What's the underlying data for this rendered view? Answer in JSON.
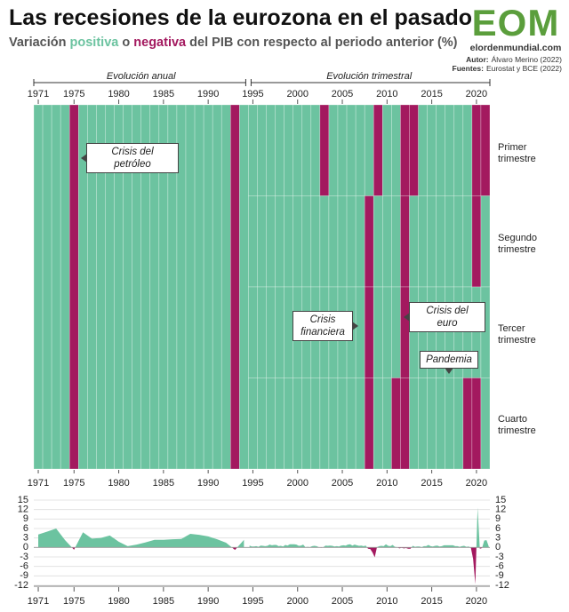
{
  "chart_data": {
    "type": "heatmap",
    "title": "Las recesiones de la eurozona en el pasado",
    "subtitle": {
      "before": "Variación",
      "positive": "positiva",
      "middle": "o",
      "negative": "negativa",
      "after": "del PIB con respecto al periodo anterior (%)"
    },
    "logo": "EOM",
    "site": "elordenmundial.com",
    "author": {
      "label": "Autor:",
      "value": "Álvaro Merino (2022)"
    },
    "sources": {
      "label": "Fuentes:",
      "value": "Eurostat y BCE (2022)"
    },
    "colors": {
      "positive": "#6cc3a0",
      "negative": "#a3195f"
    },
    "section_labels": {
      "annual": "Evolución anual",
      "quarterly": "Evolución trimestral"
    },
    "xticks": [
      1971,
      1975,
      1980,
      1985,
      1990,
      1995,
      2000,
      2005,
      2010,
      2015,
      2020
    ],
    "annual": {
      "years": [
        1971,
        1972,
        1973,
        1974,
        1975,
        1976,
        1977,
        1978,
        1979,
        1980,
        1981,
        1982,
        1983,
        1984,
        1985,
        1986,
        1987,
        1988,
        1989,
        1990,
        1991,
        1992,
        1993,
        1994
      ],
      "values": [
        4.1,
        5.0,
        6.0,
        2.3,
        -0.7,
        4.8,
        2.8,
        3.0,
        3.8,
        1.8,
        0.4,
        0.9,
        1.6,
        2.4,
        2.4,
        2.6,
        2.7,
        4.3,
        4.0,
        3.5,
        2.6,
        1.5,
        -0.8,
        2.4
      ]
    },
    "quarterly": {
      "quarters": [
        "Primer trimestre",
        "Segundo trimestre",
        "Tercer trimestre",
        "Cuarto trimestre"
      ],
      "years": [
        1995,
        1996,
        1997,
        1998,
        1999,
        2000,
        2001,
        2002,
        2003,
        2004,
        2005,
        2006,
        2007,
        2008,
        2009,
        2010,
        2011,
        2012,
        2013,
        2014,
        2015,
        2016,
        2017,
        2018,
        2019,
        2020,
        2021
      ],
      "values": [
        [
          0.6,
          0.3,
          0.3,
          0.4
        ],
        [
          0.2,
          0.6,
          0.5,
          0.4
        ],
        [
          0.5,
          0.9,
          0.7,
          0.8
        ],
        [
          0.8,
          0.4,
          0.5,
          0.3
        ],
        [
          0.8,
          0.6,
          1.0,
          1.0
        ],
        [
          1.0,
          0.9,
          0.5,
          0.6
        ],
        [
          0.9,
          0.1,
          0.2,
          0.1
        ],
        [
          0.4,
          0.5,
          0.4,
          0.1
        ],
        [
          -0.1,
          0.1,
          0.6,
          0.5
        ],
        [
          0.6,
          0.5,
          0.3,
          0.4
        ],
        [
          0.3,
          0.6,
          0.7,
          0.6
        ],
        [
          0.9,
          1.0,
          0.6,
          0.9
        ],
        [
          0.7,
          0.5,
          0.6,
          0.4
        ],
        [
          0.6,
          -0.4,
          -0.5,
          -1.6
        ],
        [
          -3.1,
          0.1,
          0.4,
          0.5
        ],
        [
          0.4,
          1.0,
          0.5,
          0.4
        ],
        [
          0.8,
          0.2,
          0.1,
          -0.3
        ],
        [
          -0.1,
          -0.3,
          -0.2,
          -0.4
        ],
        [
          -0.4,
          0.5,
          0.2,
          0.3
        ],
        [
          0.3,
          0.1,
          0.4,
          0.4
        ],
        [
          0.8,
          0.4,
          0.3,
          0.5
        ],
        [
          0.6,
          0.3,
          0.4,
          0.7
        ],
        [
          0.7,
          0.7,
          0.7,
          0.7
        ],
        [
          0.4,
          0.4,
          0.2,
          0.4
        ],
        [
          0.5,
          0.2,
          0.3,
          -0.1
        ],
        [
          -3.6,
          -11.6,
          12.6,
          -0.4
        ],
        [
          -0.2,
          2.2,
          2.3,
          0.3
        ]
      ]
    },
    "annotations": [
      "Crisis del petróleo",
      "Crisis financiera",
      "Crisis del euro",
      "Pandemia"
    ],
    "area": {
      "type": "area",
      "ylim": [
        -12,
        15
      ],
      "yticks": [
        15,
        12,
        9,
        6,
        3,
        0,
        -3,
        -6,
        -9,
        -12
      ],
      "grid": true
    }
  }
}
